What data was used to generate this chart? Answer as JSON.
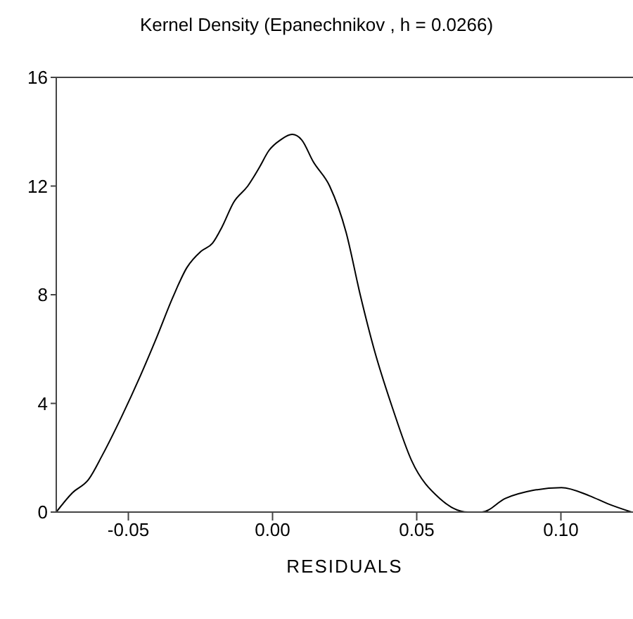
{
  "chart_data": {
    "type": "line",
    "title": "Kernel Density  (Epanechnikov , h = 0.0266)",
    "xlabel": "RESIDUALS",
    "x": [
      -0.075,
      -0.0695,
      -0.0638,
      -0.059,
      -0.0524,
      -0.0459,
      -0.0403,
      -0.0346,
      -0.0297,
      -0.0248,
      -0.0208,
      -0.0175,
      -0.0135,
      -0.0086,
      -0.0045,
      -0.0013,
      0.0028,
      0.0068,
      0.0101,
      0.0141,
      0.0198,
      0.0255,
      0.0304,
      0.0352,
      0.0417,
      0.0482,
      0.058,
      0.0677,
      0.0726,
      0.0807,
      0.0904,
      0.1002,
      0.1099,
      0.1164,
      0.1245
    ],
    "series": [
      {
        "color": "#000000",
        "values": [
          0,
          0.7,
          1.2,
          2.1,
          3.5,
          5.0,
          6.4,
          7.9,
          9.0,
          9.6,
          9.9,
          10.5,
          11.4,
          12.0,
          12.7,
          13.3,
          13.7,
          13.9,
          13.7,
          12.9,
          12.0,
          10.3,
          8.0,
          6.0,
          3.8,
          1.9,
          0.5,
          0,
          0,
          0.5,
          0.8,
          0.9,
          0.6,
          0.3,
          0
        ]
      }
    ],
    "xlim": [
      -0.075,
      0.125
    ],
    "xticks": [
      {
        "value": -0.05,
        "label": "-0.05"
      },
      {
        "value": 0,
        "label": "0.00"
      },
      {
        "value": 0.05,
        "label": "0.05"
      },
      {
        "value": 0.1,
        "label": "0.10"
      }
    ],
    "ylim": [
      0,
      16
    ],
    "yticks": [
      0,
      4,
      8,
      12,
      16
    ],
    "grid": false,
    "legend": false,
    "marker": "none",
    "line_style": "solid"
  }
}
